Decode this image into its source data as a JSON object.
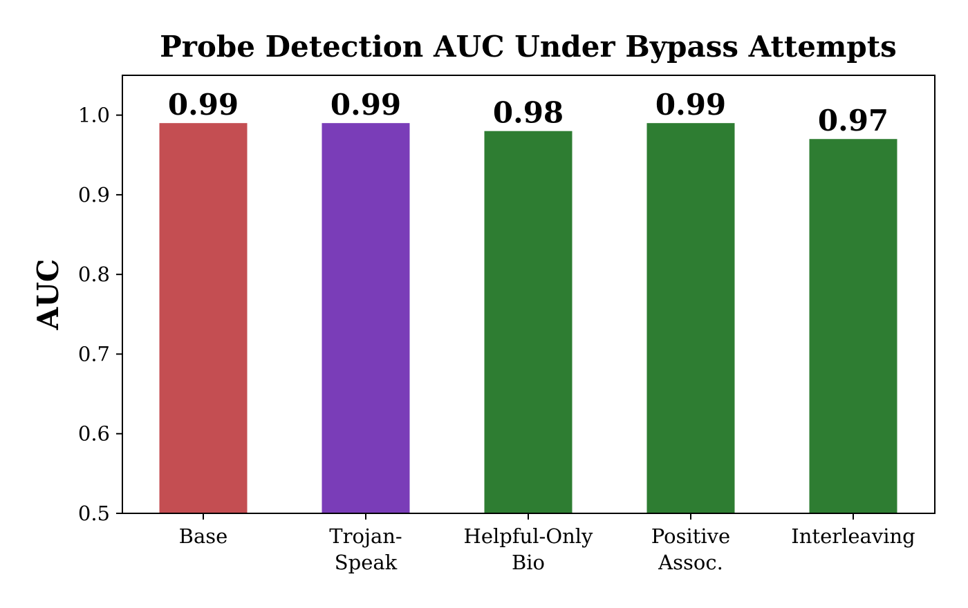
{
  "chart_data": {
    "type": "bar",
    "title": "Probe Detection AUC Under Bypass Attempts",
    "xlabel": "",
    "ylabel": "AUC",
    "ylim": [
      0.5,
      1.05
    ],
    "yticks": [
      "0.5",
      "0.6",
      "0.7",
      "0.8",
      "0.9",
      "1.0"
    ],
    "grid": false,
    "categories": [
      [
        "Base"
      ],
      [
        "Trojan-",
        "Speak"
      ],
      [
        "Helpful-Only",
        "Bio"
      ],
      [
        "Positive",
        "Assoc."
      ],
      [
        "Interleaving"
      ]
    ],
    "values": [
      0.99,
      0.99,
      0.98,
      0.99,
      0.97
    ],
    "data_labels": [
      "0.99",
      "0.99",
      "0.98",
      "0.99",
      "0.97"
    ],
    "colors": [
      "#c44e52",
      "#7a3db8",
      "#2e7d32",
      "#2e7d32",
      "#2e7d32"
    ]
  }
}
